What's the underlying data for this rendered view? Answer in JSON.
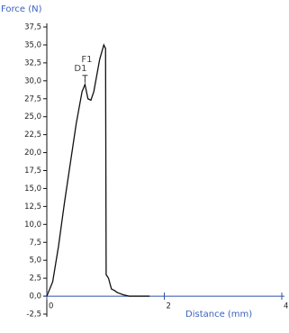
{
  "chart_data": {
    "type": "line",
    "y_label": "Force (N)",
    "x_label": "Distance (mm)",
    "annotations": [
      "F1",
      "D1"
    ],
    "x": [
      0,
      0.1,
      0.2,
      0.3,
      0.4,
      0.5,
      0.6,
      0.65,
      0.7,
      0.75,
      0.8,
      0.9,
      0.97,
      1.0,
      1.01,
      1.05,
      1.1,
      1.15,
      1.2,
      1.3,
      1.4,
      1.75
    ],
    "series": [
      {
        "color": "#111111",
        "values": [
          0,
          2,
          7,
          13,
          18.5,
          24,
          28.5,
          29.5,
          27.5,
          27.3,
          28.5,
          33,
          35,
          34.5,
          3,
          2.5,
          1.0,
          0.8,
          0.5,
          0.2,
          0,
          0
        ]
      }
    ],
    "xlim": [
      0,
      4
    ],
    "xticks": [
      0,
      2,
      4
    ],
    "ylim": [
      -2.5,
      37.5
    ],
    "yticks": [
      {
        "value": -2.5,
        "label": "-2,5"
      },
      {
        "value": 0,
        "label": "0,0"
      },
      {
        "value": 2.5,
        "label": "2,5"
      },
      {
        "value": 5,
        "label": "5,0"
      },
      {
        "value": 7.5,
        "label": "7,5"
      },
      {
        "value": 10,
        "label": "10,0"
      },
      {
        "value": 12.5,
        "label": "12,5"
      },
      {
        "value": 15,
        "label": "15,0"
      },
      {
        "value": 17.5,
        "label": "17,5"
      },
      {
        "value": 20,
        "label": "20,0"
      },
      {
        "value": 22.5,
        "label": "22,5"
      },
      {
        "value": 25,
        "label": "25,0"
      },
      {
        "value": 27.5,
        "label": "27,5"
      },
      {
        "value": 30,
        "label": "30,0"
      },
      {
        "value": 32.5,
        "label": "32,5"
      },
      {
        "value": 35,
        "label": "35,0"
      },
      {
        "value": 37.5,
        "label": "37,5"
      }
    ],
    "axis_color": "#2f4fa8",
    "label_color": "#3a62c0"
  }
}
